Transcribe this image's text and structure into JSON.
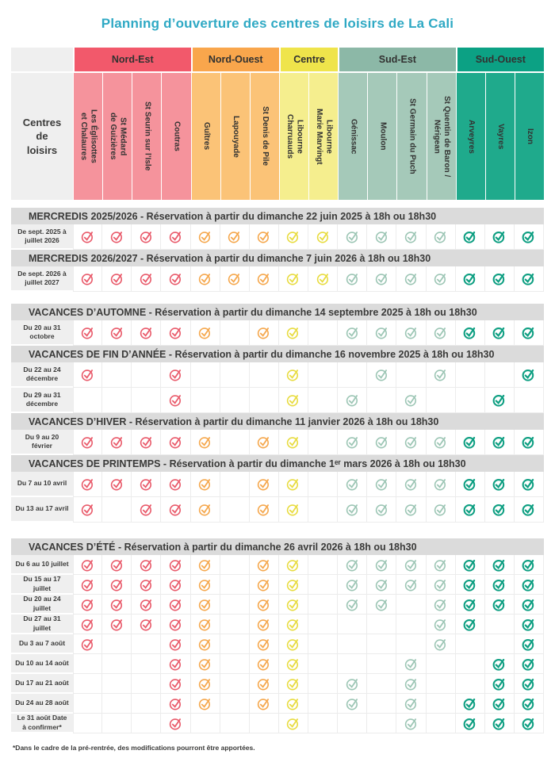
{
  "title": "Planning d’ouverture des centres de loisirs de La Cali",
  "footnote": "*Dans le cadre de la pré-rentrée, des modifications pourront être apportées.",
  "table": {
    "corner_label": "Centres\nde\nloisirs",
    "groups": [
      {
        "id": "nord-est",
        "label": "Nord-Est",
        "header_color": "#F2596B",
        "cell_color": "#F5939C",
        "check_color": "#E95B6B",
        "check_stroke": 2.1,
        "columns": [
          "Les Églisottes\net Chalaures",
          "St Médard\nde Guizières",
          "St Seurin sur l’Isle",
          "Coutras"
        ]
      },
      {
        "id": "nord-ouest",
        "label": "Nord-Ouest",
        "header_color": "#F9A64C",
        "cell_color": "#FBC377",
        "check_color": "#F5A84E",
        "check_stroke": 2.1,
        "columns": [
          "Guîtres",
          "Lapouyade",
          "St Denis de Pile"
        ]
      },
      {
        "id": "centre",
        "label": "Centre",
        "header_color": "#EFE44B",
        "cell_color": "#F5EE8E",
        "check_color": "#E8DC41",
        "check_stroke": 2.1,
        "columns": [
          "Libourne\nCharruauds",
          "Libourne\nMarie Marvingt"
        ]
      },
      {
        "id": "sud-est",
        "label": "Sud-Est",
        "header_color": "#8CB8A7",
        "cell_color": "#A5C9B9",
        "check_color": "#9DC6B5",
        "check_stroke": 2.1,
        "columns": [
          "Génissac",
          "Moulon",
          "St Germain du Puch",
          "St Quentin de Baron /\nNérigean"
        ]
      },
      {
        "id": "sud-ouest",
        "label": "Sud-Ouest",
        "header_color": "#0CA184",
        "cell_color": "#1FAA8C",
        "check_color": "#0E9F82",
        "check_stroke": 2.6,
        "columns": [
          "Arveyres",
          "Vayres",
          "Izon"
        ]
      }
    ],
    "sections": [
      {
        "title": "MERCREDIS 2025/2026 - Réservation à partir du dimanche 22 juin 2025 à 18h ou 18h30",
        "gap_before": 10,
        "compact": false,
        "rows": [
          {
            "label": "De sept. 2025 à juillet 2026",
            "checked_columns": [
              1,
              2,
              3,
              4,
              5,
              6,
              7,
              8,
              9,
              10,
              11,
              12,
              13,
              14,
              15,
              16
            ]
          }
        ]
      },
      {
        "title": "MERCREDIS 2026/2027 - Réservation à partir du dimanche 7 juin 2026 à 18h ou 18h30",
        "gap_before": 0,
        "compact": false,
        "rows": [
          {
            "label": "De sept. 2026 à juillet 2027",
            "checked_columns": [
              1,
              2,
              3,
              4,
              5,
              6,
              7,
              8,
              9,
              10,
              11,
              12,
              13,
              14,
              15,
              16
            ]
          }
        ]
      },
      {
        "title": "VACANCES D’AUTOMNE - Réservation à partir du dimanche 14 septembre 2025 à 18h ou 18h30",
        "gap_before": 15,
        "compact": false,
        "rows": [
          {
            "label": "Du 20 au 31 octobre",
            "checked_columns": [
              1,
              2,
              3,
              4,
              5,
              7,
              8,
              10,
              11,
              12,
              13,
              14,
              15,
              16
            ]
          }
        ]
      },
      {
        "title": "VACANCES DE FIN D’ANNÉE - Réservation à partir du dimanche 16 novembre 2025 à 18h ou 18h30",
        "gap_before": 0,
        "compact": false,
        "rows": [
          {
            "label": "Du 22 au 24 décembre",
            "checked_columns": [
              1,
              4,
              8,
              11,
              13,
              16
            ]
          },
          {
            "label": "Du 29 au 31 décembre",
            "checked_columns": [
              4,
              8,
              10,
              12,
              15
            ]
          }
        ]
      },
      {
        "title": "VACANCES D’HIVER - Réservation à partir du dimanche 11 janvier 2026 à 18h ou 18h30",
        "gap_before": 0,
        "compact": false,
        "rows": [
          {
            "label": "Du 9 au 20 février",
            "checked_columns": [
              1,
              2,
              3,
              4,
              5,
              7,
              8,
              10,
              11,
              12,
              13,
              14,
              15,
              16
            ]
          }
        ]
      },
      {
        "title": "VACANCES DE PRINTEMPS - Réservation à partir du dimanche 1ᵉʳ mars 2026 à 18h ou 18h30",
        "gap_before": 0,
        "compact": false,
        "rows": [
          {
            "label": "Du 7 au 10 avril",
            "checked_columns": [
              1,
              2,
              3,
              4,
              5,
              7,
              8,
              10,
              11,
              12,
              13,
              14,
              15,
              16
            ]
          },
          {
            "label": "Du 13 au 17 avril",
            "checked_columns": [
              1,
              3,
              4,
              5,
              7,
              8,
              10,
              11,
              12,
              13,
              14,
              15,
              16
            ]
          }
        ]
      },
      {
        "title": "VACANCES D’ÉTÉ - Réservation à partir du dimanche 26 avril 2026 à 18h ou 18h30",
        "gap_before": 20,
        "compact": true,
        "rows": [
          {
            "label": "Du 6 au 10 juillet",
            "checked_columns": [
              1,
              2,
              3,
              4,
              5,
              7,
              8,
              10,
              11,
              12,
              13,
              14,
              15,
              16
            ]
          },
          {
            "label": "Du 15 au 17 juillet",
            "checked_columns": [
              1,
              2,
              3,
              4,
              5,
              7,
              8,
              10,
              11,
              12,
              13,
              14,
              15,
              16
            ]
          },
          {
            "label": "Du 20 au 24 juillet",
            "checked_columns": [
              1,
              2,
              3,
              4,
              5,
              7,
              8,
              10,
              11,
              13,
              14,
              15,
              16
            ]
          },
          {
            "label": "Du 27 au 31 juillet",
            "checked_columns": [
              1,
              2,
              3,
              4,
              5,
              7,
              8,
              13,
              14,
              16
            ]
          },
          {
            "label": "Du 3 au 7 août",
            "checked_columns": [
              1,
              4,
              5,
              7,
              8,
              13,
              16
            ]
          },
          {
            "label": "Du 10 au 14 août",
            "checked_columns": [
              4,
              5,
              7,
              8,
              12,
              15,
              16
            ]
          },
          {
            "label": "Du 17 au 21 août",
            "checked_columns": [
              4,
              5,
              7,
              8,
              10,
              12,
              15,
              16
            ]
          },
          {
            "label": "Du 24 au 28 août",
            "checked_columns": [
              4,
              5,
              7,
              8,
              10,
              12,
              14,
              15,
              16
            ]
          },
          {
            "label": "Le 31 août Date à confirmer*",
            "checked_columns": [
              4,
              8,
              12,
              14,
              15,
              16
            ]
          }
        ]
      }
    ]
  }
}
